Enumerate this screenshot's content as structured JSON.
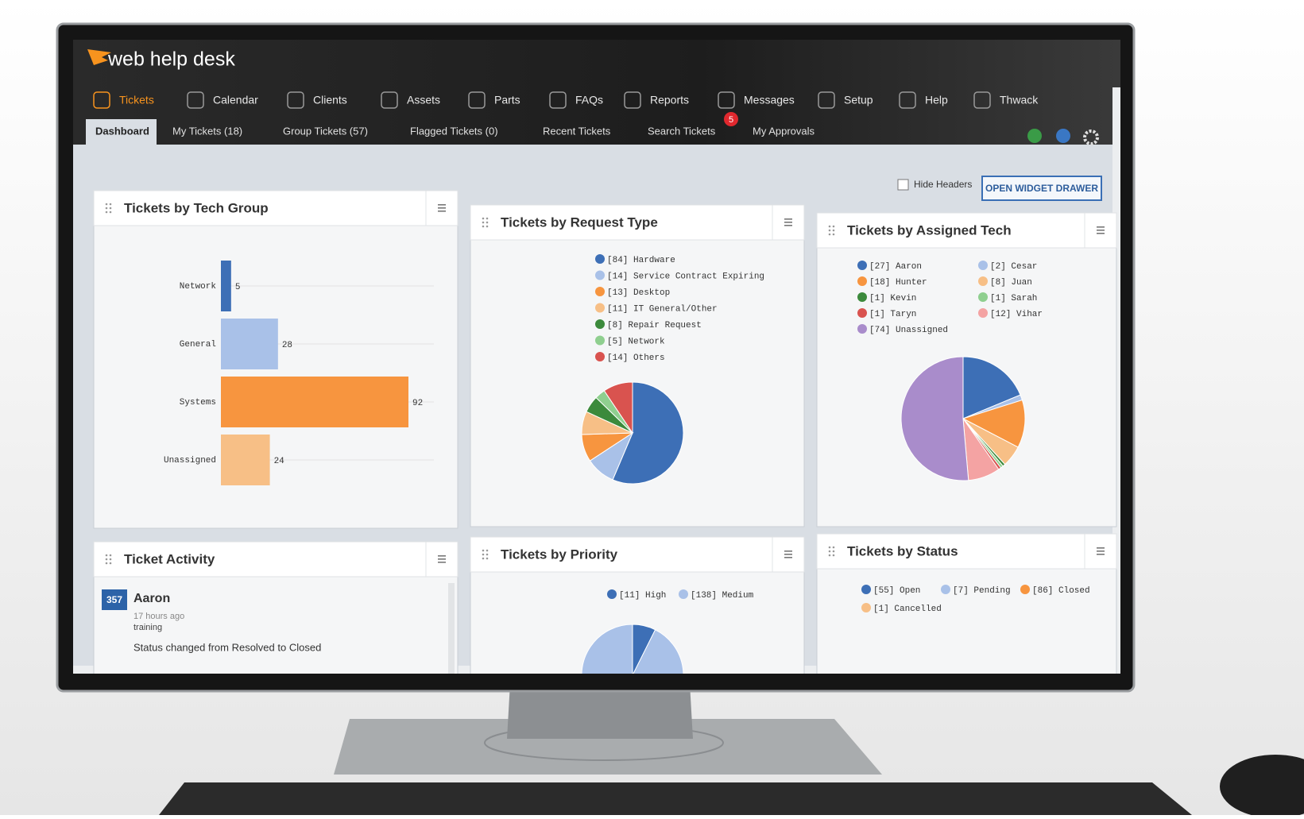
{
  "app": {
    "logo": "web help desk",
    "nav": [
      "Tickets",
      "Calendar",
      "Clients",
      "Assets",
      "Parts",
      "FAQs",
      "Reports",
      "Messages",
      "Setup",
      "Help",
      "Thwack"
    ],
    "message_count": 5,
    "tabs": [
      "Dashboard",
      "My Tickets (18)",
      "Group Tickets (57)",
      "Flagged Tickets (0)",
      "Recent Tickets",
      "Search Tickets",
      "My Approvals"
    ],
    "hide_headers": "Hide Headers",
    "open_widget_drawer": "OPEN WIDGET DRAWER"
  },
  "widgets": [
    {
      "title": "Tickets by Tech Group",
      "chart": {
        "type": "bar",
        "categories": [
          "Network",
          "General",
          "Systems",
          "Unassigned"
        ],
        "values": [
          5,
          28,
          92,
          24
        ],
        "colors": [
          "#3d6fb6",
          "#a9c1e8",
          "#f7953f",
          "#f7bf86"
        ]
      }
    },
    {
      "title": "Tickets by Request Type",
      "chart": {
        "type": "pie",
        "labels": [
          "[84] Hardware",
          "[14] Service Contract Expiring",
          "[13] Desktop",
          "[11] IT General/Other",
          "[8] Repair Request",
          "[5] Network",
          "[14] Others"
        ],
        "values": [
          84,
          14,
          13,
          11,
          8,
          5,
          14
        ],
        "colors": [
          "#3d6fb6",
          "#a9c1e8",
          "#f7953f",
          "#f7bf86",
          "#3c8a3c",
          "#8fcf8f",
          "#d9534f"
        ]
      }
    },
    {
      "title": "Tickets by Assigned Tech",
      "chart": {
        "type": "pie",
        "labels": [
          "[27] Aaron",
          "[2] Cesar",
          "[18] Hunter",
          "[8] Juan",
          "[1] Kevin",
          "[1] Sarah",
          "[1] Taryn",
          "[12] Vihar",
          "[74] Unassigned"
        ],
        "values": [
          27,
          2,
          18,
          8,
          1,
          1,
          1,
          12,
          74
        ],
        "colors": [
          "#3d6fb6",
          "#a9c1e8",
          "#f7953f",
          "#f7bf86",
          "#3c8a3c",
          "#8fcf8f",
          "#d9534f",
          "#f4a3a3",
          "#a98ccb"
        ]
      }
    },
    {
      "title": "Ticket Activity",
      "activity": {
        "id": "357",
        "user": "Aaron",
        "time": "17 hours ago",
        "group": "training",
        "text": "Status changed from Resolved to Closed"
      }
    },
    {
      "title": "Tickets by Priority",
      "chart": {
        "type": "pie",
        "labels": [
          "[11] High",
          "[138] Medium"
        ],
        "values": [
          11,
          138
        ],
        "colors": [
          "#3d6fb6",
          "#a9c1e8"
        ]
      }
    },
    {
      "title": "Tickets by Status",
      "legend": {
        "labels": [
          "[55] Open",
          "[7] Pending",
          "[86] Closed",
          "[1] Cancelled"
        ],
        "colors": [
          "#3d6fb6",
          "#a9c1e8",
          "#f7953f",
          "#f7bf86"
        ]
      }
    }
  ]
}
